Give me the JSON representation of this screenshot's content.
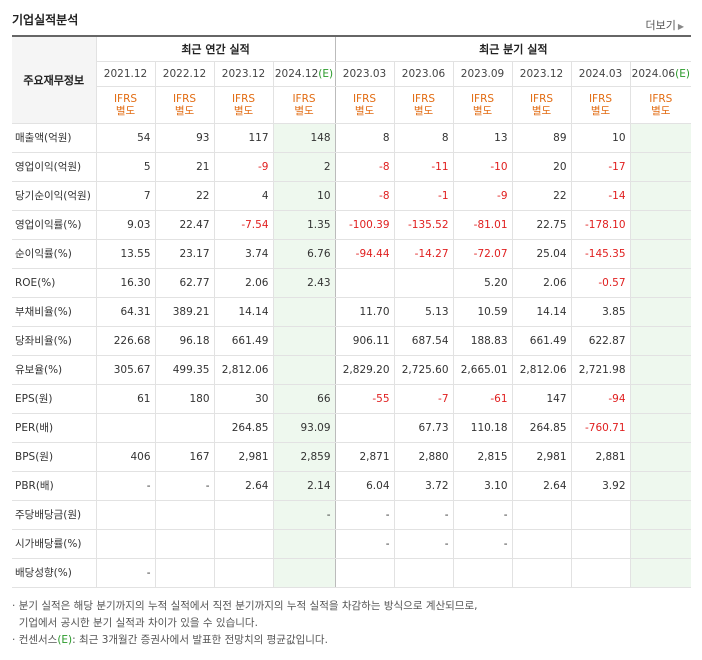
{
  "header": {
    "title": "기업실적분석",
    "more": "더보기"
  },
  "table": {
    "row_header": "주요재무정보",
    "groups": [
      "최근 연간 실적",
      "최근 분기 실적"
    ],
    "periods": [
      {
        "date": "2021.12",
        "est": ""
      },
      {
        "date": "2022.12",
        "est": ""
      },
      {
        "date": "2023.12",
        "est": ""
      },
      {
        "date": "2024.12",
        "est": "(E)"
      },
      {
        "date": "2023.03",
        "est": ""
      },
      {
        "date": "2023.06",
        "est": ""
      },
      {
        "date": "2023.09",
        "est": ""
      },
      {
        "date": "2023.12",
        "est": ""
      },
      {
        "date": "2024.03",
        "est": ""
      },
      {
        "date": "2024.06",
        "est": "(E)"
      }
    ],
    "ifrs": {
      "line1": "IFRS",
      "line2": "별도"
    },
    "rows": [
      {
        "label": "매출액(억원)",
        "values": [
          "54",
          "93",
          "117",
          "148",
          "8",
          "8",
          "13",
          "89",
          "10",
          ""
        ]
      },
      {
        "label": "영업이익(억원)",
        "values": [
          "5",
          "21",
          "-9",
          "2",
          "-8",
          "-11",
          "-10",
          "20",
          "-17",
          ""
        ]
      },
      {
        "label": "당기순이익(억원)",
        "values": [
          "7",
          "22",
          "4",
          "10",
          "-8",
          "-1",
          "-9",
          "22",
          "-14",
          ""
        ]
      },
      {
        "label": "영업이익률(%)",
        "values": [
          "9.03",
          "22.47",
          "-7.54",
          "1.35",
          "-100.39",
          "-135.52",
          "-81.01",
          "22.75",
          "-178.10",
          ""
        ]
      },
      {
        "label": "순이익률(%)",
        "values": [
          "13.55",
          "23.17",
          "3.74",
          "6.76",
          "-94.44",
          "-14.27",
          "-72.07",
          "25.04",
          "-145.35",
          ""
        ]
      },
      {
        "label": "ROE(%)",
        "values": [
          "16.30",
          "62.77",
          "2.06",
          "2.43",
          "",
          "",
          "5.20",
          "2.06",
          "-0.57",
          ""
        ]
      },
      {
        "label": "부채비율(%)",
        "values": [
          "64.31",
          "389.21",
          "14.14",
          "",
          "11.70",
          "5.13",
          "10.59",
          "14.14",
          "3.85",
          ""
        ]
      },
      {
        "label": "당좌비율(%)",
        "values": [
          "226.68",
          "96.18",
          "661.49",
          "",
          "906.11",
          "687.54",
          "188.83",
          "661.49",
          "622.87",
          ""
        ]
      },
      {
        "label": "유보율(%)",
        "values": [
          "305.67",
          "499.35",
          "2,812.06",
          "",
          "2,829.20",
          "2,725.60",
          "2,665.01",
          "2,812.06",
          "2,721.98",
          ""
        ]
      },
      {
        "label": "EPS(원)",
        "values": [
          "61",
          "180",
          "30",
          "66",
          "-55",
          "-7",
          "-61",
          "147",
          "-94",
          ""
        ]
      },
      {
        "label": "PER(배)",
        "values": [
          "",
          "",
          "264.85",
          "93.09",
          "",
          "67.73",
          "110.18",
          "264.85",
          "-760.71",
          ""
        ]
      },
      {
        "label": "BPS(원)",
        "values": [
          "406",
          "167",
          "2,981",
          "2,859",
          "2,871",
          "2,880",
          "2,815",
          "2,981",
          "2,881",
          ""
        ]
      },
      {
        "label": "PBR(배)",
        "values": [
          "-",
          "-",
          "2.64",
          "2.14",
          "6.04",
          "3.72",
          "3.10",
          "2.64",
          "3.92",
          ""
        ]
      },
      {
        "label": "주당배당금(원)",
        "values": [
          "",
          "",
          "",
          "-",
          "-",
          "-",
          "-",
          "",
          "",
          " "
        ]
      },
      {
        "label": "시가배당률(%)",
        "values": [
          "",
          "",
          "",
          "",
          "-",
          "-",
          "-",
          "",
          "",
          ""
        ]
      },
      {
        "label": "배당성향(%)",
        "values": [
          "-",
          "",
          "",
          "",
          "",
          "",
          "",
          "",
          "",
          ""
        ]
      }
    ]
  },
  "notes": {
    "line1": "분기 실적은 해당 분기까지의 누적 실적에서 직전 분기까지의 누적 실적을 차감하는 방식으로 계산되므로,",
    "line2": "기업에서 공시한 분기 실적과 차이가 있을 수 있습니다.",
    "line3_prefix": "컨센서스",
    "line3_e": "(E)",
    "line3_suffix": ": 최근 3개월간 증권사에서 발표한 전망치의 평균값입니다."
  }
}
